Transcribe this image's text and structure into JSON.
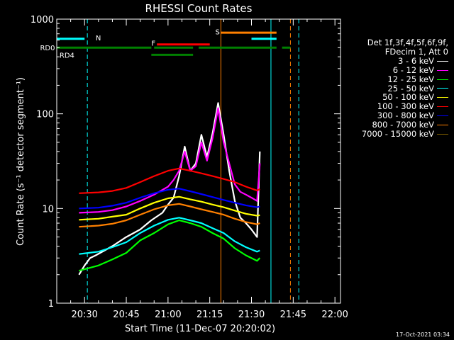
{
  "chart_data": {
    "type": "line",
    "title": "RHESSI Count Rates",
    "xlabel": "Start Time (11-Dec-07 20:20:02)",
    "ylabel": "Count Rate (s⁻¹ detector segment⁻¹)",
    "yscale": "log",
    "ylim": [
      1,
      1000
    ],
    "xlim_minutes_after_2020": [
      0,
      102
    ],
    "x_ticks": [
      "20:30",
      "20:45",
      "21:00",
      "21:15",
      "21:30",
      "21:45",
      "22:00"
    ],
    "y_ticks": [
      "1",
      "10",
      "100",
      "1000"
    ],
    "legend_header": [
      "Det 1f,3f,4f,5f,6f,9f,",
      "FDecim 1, Att 0"
    ],
    "legend_placement": "right, outside plot",
    "series": [
      {
        "name": "3 - 6 keV",
        "color": "#ffffff",
        "points": [
          [
            8,
            2.0
          ],
          [
            10,
            2.5
          ],
          [
            12,
            3.0
          ],
          [
            14,
            3.2
          ],
          [
            20,
            4.0
          ],
          [
            25,
            5.0
          ],
          [
            30,
            6.0
          ],
          [
            34,
            7.5
          ],
          [
            38,
            9.0
          ],
          [
            40,
            11.0
          ],
          [
            42,
            13.0
          ],
          [
            44,
            22.0
          ],
          [
            46,
            45.0
          ],
          [
            48,
            25.0
          ],
          [
            50,
            30.0
          ],
          [
            52,
            60.0
          ],
          [
            54,
            35.0
          ],
          [
            56,
            62.0
          ],
          [
            58,
            130.0
          ],
          [
            60,
            60.0
          ],
          [
            62,
            25.0
          ],
          [
            64,
            12.0
          ],
          [
            66,
            8.0
          ],
          [
            68,
            7.0
          ],
          [
            70,
            6.0
          ],
          [
            72,
            5.0
          ],
          [
            73,
            40.0
          ]
        ]
      },
      {
        "name": "6 - 12 keV",
        "color": "#ff00ff",
        "points": [
          [
            8,
            9.0
          ],
          [
            15,
            9.2
          ],
          [
            20,
            9.6
          ],
          [
            25,
            10.5
          ],
          [
            30,
            12.0
          ],
          [
            35,
            14.0
          ],
          [
            40,
            17.0
          ],
          [
            42,
            20.0
          ],
          [
            44,
            25.0
          ],
          [
            46,
            40.0
          ],
          [
            48,
            25.0
          ],
          [
            50,
            28.0
          ],
          [
            52,
            50.0
          ],
          [
            54,
            32.0
          ],
          [
            56,
            55.0
          ],
          [
            58,
            115.0
          ],
          [
            60,
            50.0
          ],
          [
            62,
            30.0
          ],
          [
            64,
            18.0
          ],
          [
            66,
            15.0
          ],
          [
            68,
            14.0
          ],
          [
            70,
            13.0
          ],
          [
            72,
            12.0
          ],
          [
            73,
            30.0
          ]
        ]
      },
      {
        "name": "12 - 25 keV",
        "color": "#00ff00",
        "points": [
          [
            8,
            2.2
          ],
          [
            15,
            2.5
          ],
          [
            20,
            2.9
          ],
          [
            25,
            3.4
          ],
          [
            30,
            4.6
          ],
          [
            35,
            5.5
          ],
          [
            40,
            6.8
          ],
          [
            44,
            7.5
          ],
          [
            48,
            7.0
          ],
          [
            52,
            6.4
          ],
          [
            56,
            5.5
          ],
          [
            60,
            4.8
          ],
          [
            64,
            3.8
          ],
          [
            68,
            3.2
          ],
          [
            72,
            2.8
          ],
          [
            73,
            3.0
          ]
        ]
      },
      {
        "name": "25 - 50 keV",
        "color": "#00ffff",
        "points": [
          [
            8,
            3.3
          ],
          [
            15,
            3.5
          ],
          [
            20,
            3.9
          ],
          [
            25,
            4.4
          ],
          [
            30,
            5.5
          ],
          [
            35,
            6.6
          ],
          [
            40,
            7.6
          ],
          [
            44,
            8.0
          ],
          [
            48,
            7.5
          ],
          [
            52,
            7.0
          ],
          [
            56,
            6.2
          ],
          [
            60,
            5.5
          ],
          [
            64,
            4.5
          ],
          [
            68,
            3.9
          ],
          [
            72,
            3.5
          ],
          [
            73,
            3.6
          ]
        ]
      },
      {
        "name": "50 - 100 keV",
        "color": "#ffff00",
        "points": [
          [
            8,
            7.6
          ],
          [
            15,
            7.8
          ],
          [
            20,
            8.2
          ],
          [
            25,
            8.6
          ],
          [
            30,
            10.0
          ],
          [
            35,
            11.5
          ],
          [
            40,
            12.8
          ],
          [
            44,
            13.3
          ],
          [
            48,
            12.5
          ],
          [
            52,
            11.8
          ],
          [
            56,
            11.0
          ],
          [
            60,
            10.3
          ],
          [
            64,
            9.5
          ],
          [
            68,
            8.8
          ],
          [
            72,
            8.4
          ],
          [
            73,
            8.5
          ]
        ]
      },
      {
        "name": "100 - 300 keV",
        "color": "#ff0000",
        "points": [
          [
            8,
            14.5
          ],
          [
            15,
            14.8
          ],
          [
            20,
            15.3
          ],
          [
            25,
            16.5
          ],
          [
            30,
            19.0
          ],
          [
            35,
            22.0
          ],
          [
            40,
            25.0
          ],
          [
            44,
            26.5
          ],
          [
            48,
            25.0
          ],
          [
            52,
            23.5
          ],
          [
            56,
            22.0
          ],
          [
            60,
            20.5
          ],
          [
            64,
            19.0
          ],
          [
            68,
            17.0
          ],
          [
            72,
            15.5
          ],
          [
            73,
            16.0
          ]
        ]
      },
      {
        "name": "300 - 800 keV",
        "color": "#0000ff",
        "points": [
          [
            8,
            10.0
          ],
          [
            15,
            10.2
          ],
          [
            20,
            10.7
          ],
          [
            25,
            11.5
          ],
          [
            30,
            13.0
          ],
          [
            35,
            14.5
          ],
          [
            40,
            15.8
          ],
          [
            44,
            16.2
          ],
          [
            48,
            15.2
          ],
          [
            52,
            14.2
          ],
          [
            56,
            13.2
          ],
          [
            60,
            12.3
          ],
          [
            64,
            11.5
          ],
          [
            68,
            10.8
          ],
          [
            72,
            10.3
          ],
          [
            73,
            10.5
          ]
        ]
      },
      {
        "name": "800 - 7000 keV",
        "color": "#ff8000",
        "points": [
          [
            8,
            6.4
          ],
          [
            15,
            6.6
          ],
          [
            20,
            6.9
          ],
          [
            25,
            7.5
          ],
          [
            30,
            8.6
          ],
          [
            35,
            9.8
          ],
          [
            40,
            10.8
          ],
          [
            44,
            11.2
          ],
          [
            48,
            10.5
          ],
          [
            52,
            9.8
          ],
          [
            56,
            9.2
          ],
          [
            60,
            8.6
          ],
          [
            64,
            7.8
          ],
          [
            68,
            7.2
          ],
          [
            72,
            6.8
          ],
          [
            73,
            7.0
          ]
        ]
      },
      {
        "name": "7000 - 15000 keV",
        "color": "#806000",
        "points": []
      }
    ],
    "flags": [
      {
        "label": "N",
        "color": "#00ffff",
        "segments": [
          [
            0,
            10,
            620
          ],
          [
            70,
            79,
            620
          ]
        ]
      },
      {
        "label": "F",
        "color": "#ff0000",
        "segments": [
          [
            36,
            55,
            540
          ]
        ]
      },
      {
        "label": "S",
        "color": "#ff8000",
        "segments": [
          [
            59,
            79,
            720
          ]
        ]
      },
      {
        "label": "RD0",
        "color": "#008000",
        "segments": [
          [
            0,
            34,
            500
          ],
          [
            35,
            49,
            500
          ],
          [
            51,
            79,
            500
          ],
          [
            81,
            84,
            500
          ]
        ]
      },
      {
        "label": "RD4",
        "color": "#008000",
        "segments": [
          [
            34,
            49,
            420
          ]
        ]
      }
    ],
    "vertical_markers": [
      {
        "x": 0,
        "color": "#00ffff",
        "style": "solid"
      },
      {
        "x": 11,
        "color": "#00ffff",
        "style": "dashed"
      },
      {
        "x": 59,
        "color": "#ff8000",
        "style": "solid"
      },
      {
        "x": 77,
        "color": "#00ffff",
        "style": "solid"
      },
      {
        "x": 84,
        "color": "#ff8000",
        "style": "dashed"
      },
      {
        "x": 87,
        "color": "#00ffff",
        "style": "dashed"
      }
    ],
    "flag_labels": [
      {
        "text": "N",
        "color": "#00ffff",
        "x": 14,
        "y": 640
      },
      {
        "text": "F",
        "color": "#ff0000",
        "x": 34,
        "y": 560
      },
      {
        "text": "S",
        "color": "#ff8000",
        "x": 57,
        "y": 740
      },
      {
        "text": "RD0",
        "color": "#008000",
        "x": -6,
        "y": 500
      },
      {
        "text": "RD4",
        "color": "#008000",
        "x": 1,
        "y": 420
      }
    ]
  },
  "footer": {
    "timestamp": "17-Oct-2021 03:34"
  }
}
